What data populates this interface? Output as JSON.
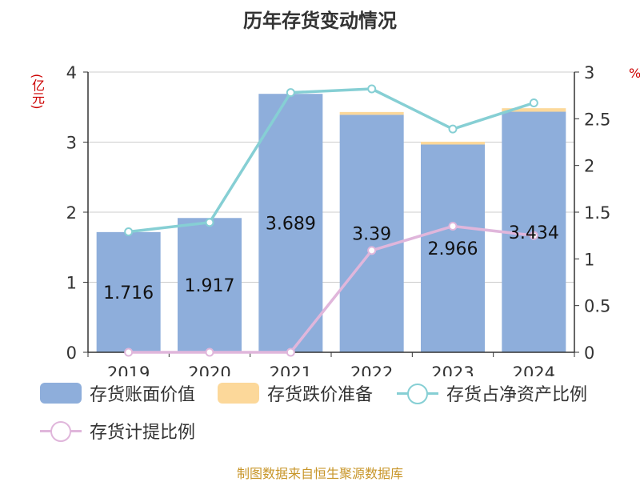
{
  "title": "历年存货变动情况",
  "footer": "制图数据来自恒生聚源数据库",
  "chart_data": {
    "type": "bar",
    "categories": [
      "2019",
      "2020",
      "2021",
      "2022",
      "2023",
      "2024"
    ],
    "y_left": {
      "unit": "(亿元)",
      "range": [
        0,
        4
      ],
      "ticks": [
        0,
        1,
        2,
        3,
        4
      ]
    },
    "y_right": {
      "unit": "%",
      "range": [
        0,
        3
      ],
      "ticks": [
        "0",
        "0.5",
        "1",
        "1.5",
        "2",
        "2.5",
        "3"
      ]
    },
    "grid": true,
    "legend_position": "bottom",
    "series": [
      {
        "name": "存货账面价值",
        "type": "bar",
        "axis": "left",
        "color": "#8eaedb",
        "values": [
          1.716,
          1.917,
          3.689,
          3.39,
          2.966,
          3.434
        ],
        "labels": [
          "1.716",
          "1.917",
          "3.689",
          "3.39",
          "2.966",
          "3.434"
        ]
      },
      {
        "name": "存货跌价准备",
        "type": "bar",
        "axis": "left",
        "stacked": true,
        "color": "#fcd89a",
        "values": [
          0,
          0,
          0,
          0.04,
          0.04,
          0.05
        ]
      },
      {
        "name": "存货占净资产比例",
        "type": "line",
        "axis": "right",
        "color": "#86cfd4",
        "values": [
          1.29,
          1.39,
          2.78,
          2.82,
          2.39,
          2.67
        ]
      },
      {
        "name": "存货计提比例",
        "type": "line",
        "axis": "right",
        "color": "#e0b6db",
        "values": [
          0.0,
          0.0,
          0.0,
          1.09,
          1.35,
          1.25
        ]
      }
    ]
  }
}
